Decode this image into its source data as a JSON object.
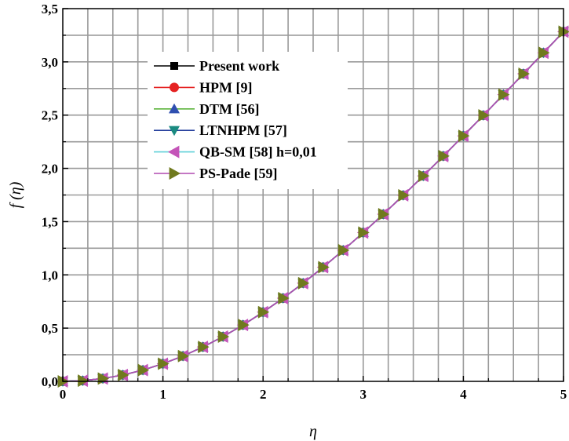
{
  "chart_data": {
    "type": "line",
    "title": "",
    "xlabel": "η",
    "ylabel": "f (η)",
    "xlim": [
      0,
      5
    ],
    "ylim": [
      0,
      3.5
    ],
    "grid": true,
    "legend_position": "top-left",
    "x_ticks": [
      "0",
      "1",
      "2",
      "3",
      "4",
      "5"
    ],
    "y_ticks": [
      "0,0",
      "0,5",
      "1,0",
      "1,5",
      "2,0",
      "2,5",
      "3,0",
      "3,5"
    ],
    "x": [
      0,
      0.2,
      0.4,
      0.6,
      0.8,
      1.0,
      1.2,
      1.4,
      1.6,
      1.8,
      2.0,
      2.2,
      2.4,
      2.6,
      2.8,
      3.0,
      3.2,
      3.4,
      3.6,
      3.8,
      4.0,
      4.2,
      4.4,
      4.6,
      4.8,
      5.0
    ],
    "series": [
      {
        "name": "Present work",
        "color": "#000000",
        "marker": "square",
        "values": [
          0,
          0.0066,
          0.0266,
          0.0597,
          0.1061,
          0.1656,
          0.238,
          0.323,
          0.4203,
          0.5295,
          0.65,
          0.7812,
          0.9223,
          1.0725,
          1.231,
          1.3968,
          1.5691,
          1.747,
          1.9295,
          2.116,
          2.3058,
          2.4981,
          2.6924,
          2.8882,
          3.0853,
          3.2833
        ]
      },
      {
        "name": "HPM [9]",
        "color": "#e52222",
        "marker": "circle",
        "values": [
          0,
          0.0066,
          0.0266,
          0.0597,
          0.1061,
          0.1656,
          0.238,
          0.323,
          0.4203,
          0.5295,
          0.65,
          0.7812,
          0.9223,
          1.0725,
          1.231,
          1.3968,
          1.5691,
          1.747,
          1.9295,
          2.116,
          2.3058,
          2.4981,
          2.6924,
          2.8882,
          3.0853,
          3.2833
        ]
      },
      {
        "name": "DTM [56]",
        "color": "#5ab33a",
        "marker_color": "#2f4fb0",
        "marker": "triangle-up",
        "values": [
          0,
          0.0066,
          0.0266,
          0.0597,
          0.1061,
          0.1656,
          0.238,
          0.323,
          0.4203,
          0.5295,
          0.65,
          0.7812,
          0.9223,
          1.0725,
          1.231,
          1.3968,
          1.5691,
          1.747,
          1.9295,
          2.116,
          2.3058,
          2.4981,
          2.6924,
          2.8882,
          3.0853,
          3.2833
        ]
      },
      {
        "name": "LTNHPM [57]",
        "color": "#1f3a9a",
        "marker_color": "#1a8a80",
        "marker": "triangle-down",
        "values": [
          0,
          0.0066,
          0.0266,
          0.0597,
          0.1061,
          0.1656,
          0.238,
          0.323,
          0.4203,
          0.5295,
          0.65,
          0.7812,
          0.9223,
          1.0725,
          1.231,
          1.3968,
          1.5691,
          1.747,
          1.9295,
          2.116,
          2.3058,
          2.4981,
          2.6924,
          2.8882,
          3.0853,
          3.2833
        ]
      },
      {
        "name": "QB-SM  [58] h=0,01",
        "color": "#5fd0d8",
        "marker_color": "#c454b8",
        "marker": "triangle-left",
        "values": [
          0,
          0.0066,
          0.0266,
          0.0597,
          0.1061,
          0.1656,
          0.238,
          0.323,
          0.4203,
          0.5295,
          0.65,
          0.7812,
          0.9223,
          1.0725,
          1.231,
          1.3968,
          1.5691,
          1.747,
          1.9295,
          2.116,
          2.3058,
          2.4981,
          2.6924,
          2.8882,
          3.0853,
          3.2833
        ]
      },
      {
        "name": "PS-Pade [59]",
        "color": "#b04ab0",
        "marker_color": "#707a1e",
        "marker": "triangle-right",
        "values": [
          0,
          0.0066,
          0.0266,
          0.0597,
          0.1061,
          0.1656,
          0.238,
          0.323,
          0.4203,
          0.5295,
          0.65,
          0.7812,
          0.9223,
          1.0725,
          1.231,
          1.3968,
          1.5691,
          1.747,
          1.9295,
          2.116,
          2.3058,
          2.4981,
          2.6924,
          2.8882,
          3.0853,
          3.2833
        ]
      }
    ]
  }
}
